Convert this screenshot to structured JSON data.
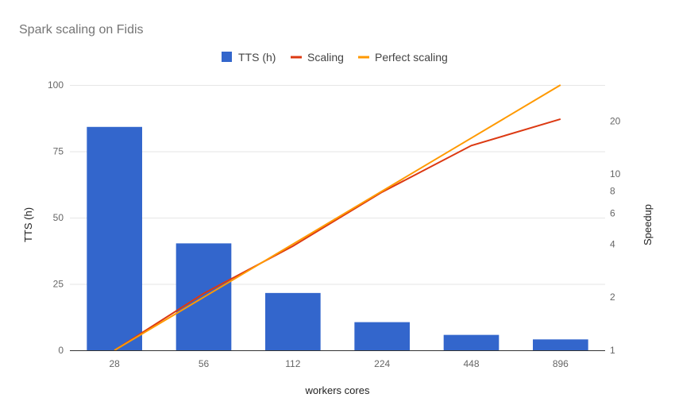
{
  "chart_data": {
    "type": "bar",
    "title": "Spark scaling on Fidis",
    "xlabel": "workers cores",
    "ylabel": "TTS (h)",
    "y2label": "Speedup",
    "categories": [
      "28",
      "56",
      "112",
      "224",
      "448",
      "896"
    ],
    "ylim": [
      0,
      100
    ],
    "yticks": [
      "0",
      "25",
      "50",
      "75",
      "100"
    ],
    "y2ticks": [
      {
        "label": "1",
        "value": 1
      },
      {
        "label": "2",
        "value": 2
      },
      {
        "label": "4",
        "value": 4
      },
      {
        "label": "6",
        "value": 6
      },
      {
        "label": "8",
        "value": 8
      },
      {
        "label": "10",
        "value": 10
      },
      {
        "label": "20",
        "value": 20
      }
    ],
    "y2_scale": "log",
    "y2lim": [
      1,
      32
    ],
    "grid": true,
    "legend": "top",
    "series": [
      {
        "name": "TTS (h)",
        "kind": "bar",
        "axis": "left",
        "color": "#3366cc",
        "values": [
          84.2,
          40.3,
          21.6,
          10.6,
          5.8,
          4.1
        ]
      },
      {
        "name": "Scaling",
        "kind": "line",
        "axis": "right",
        "color": "#dc3912",
        "values": [
          1,
          2.1,
          3.9,
          7.9,
          14.5,
          20.5
        ]
      },
      {
        "name": "Perfect scaling",
        "kind": "line",
        "axis": "right",
        "color": "#ff9900",
        "values": [
          1,
          2,
          4,
          8,
          16,
          32
        ]
      }
    ]
  }
}
